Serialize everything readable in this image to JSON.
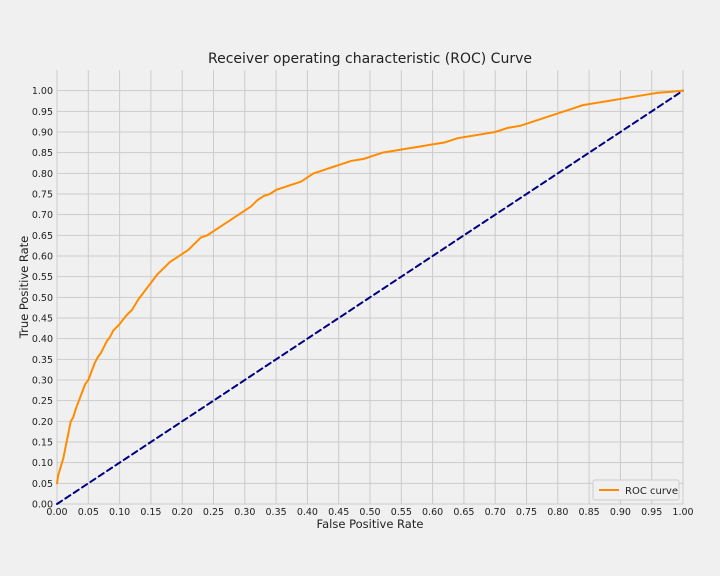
{
  "chart_data": {
    "type": "line",
    "title": "Receiver operating characteristic (ROC) Curve",
    "xlabel": "False Positive Rate",
    "ylabel": "True Positive Rate",
    "xlim": [
      0.0,
      1.0
    ],
    "ylim": [
      0.0,
      1.05
    ],
    "xticks": [
      "0.00",
      "0.05",
      "0.10",
      "0.15",
      "0.20",
      "0.25",
      "0.30",
      "0.35",
      "0.40",
      "0.45",
      "0.50",
      "0.55",
      "0.60",
      "0.65",
      "0.70",
      "0.75",
      "0.80",
      "0.85",
      "0.90",
      "0.95",
      "1.00"
    ],
    "yticks": [
      "0.00",
      "0.05",
      "0.10",
      "0.15",
      "0.20",
      "0.25",
      "0.30",
      "0.35",
      "0.40",
      "0.45",
      "0.50",
      "0.55",
      "0.60",
      "0.65",
      "0.70",
      "0.75",
      "0.80",
      "0.85",
      "0.90",
      "0.95",
      "1.00"
    ],
    "grid": true,
    "legend": {
      "placement": "bottom-right",
      "entries": [
        "ROC curve"
      ]
    },
    "series": [
      {
        "name": "ROC curve",
        "color": "#ff8c00",
        "style": "solid",
        "x": [
          0.0,
          0.002,
          0.006,
          0.01,
          0.014,
          0.018,
          0.022,
          0.026,
          0.03,
          0.035,
          0.04,
          0.045,
          0.05,
          0.055,
          0.06,
          0.065,
          0.07,
          0.075,
          0.08,
          0.085,
          0.09,
          0.1,
          0.11,
          0.12,
          0.13,
          0.14,
          0.15,
          0.16,
          0.17,
          0.18,
          0.19,
          0.2,
          0.21,
          0.22,
          0.23,
          0.24,
          0.25,
          0.26,
          0.27,
          0.28,
          0.29,
          0.3,
          0.31,
          0.32,
          0.33,
          0.34,
          0.35,
          0.36,
          0.37,
          0.38,
          0.39,
          0.4,
          0.41,
          0.42,
          0.43,
          0.44,
          0.45,
          0.47,
          0.49,
          0.5,
          0.52,
          0.54,
          0.56,
          0.58,
          0.6,
          0.62,
          0.64,
          0.66,
          0.68,
          0.7,
          0.72,
          0.74,
          0.76,
          0.78,
          0.8,
          0.82,
          0.84,
          0.86,
          0.88,
          0.9,
          0.92,
          0.94,
          0.96,
          0.98,
          1.0
        ],
        "y": [
          0.05,
          0.07,
          0.09,
          0.11,
          0.14,
          0.17,
          0.2,
          0.21,
          0.23,
          0.25,
          0.27,
          0.29,
          0.3,
          0.32,
          0.34,
          0.355,
          0.365,
          0.38,
          0.395,
          0.405,
          0.42,
          0.435,
          0.455,
          0.47,
          0.495,
          0.515,
          0.535,
          0.555,
          0.57,
          0.585,
          0.595,
          0.605,
          0.615,
          0.63,
          0.645,
          0.65,
          0.66,
          0.67,
          0.68,
          0.69,
          0.7,
          0.71,
          0.72,
          0.735,
          0.745,
          0.75,
          0.76,
          0.765,
          0.77,
          0.775,
          0.78,
          0.79,
          0.8,
          0.805,
          0.81,
          0.815,
          0.82,
          0.83,
          0.835,
          0.84,
          0.85,
          0.855,
          0.86,
          0.865,
          0.87,
          0.875,
          0.885,
          0.89,
          0.895,
          0.9,
          0.91,
          0.915,
          0.925,
          0.935,
          0.945,
          0.955,
          0.965,
          0.97,
          0.975,
          0.98,
          0.985,
          0.99,
          0.995,
          0.997,
          1.0
        ]
      },
      {
        "color": "#000080",
        "style": "dashed",
        "x": [
          0.0,
          1.0
        ],
        "y": [
          0.0,
          1.0
        ]
      }
    ]
  }
}
